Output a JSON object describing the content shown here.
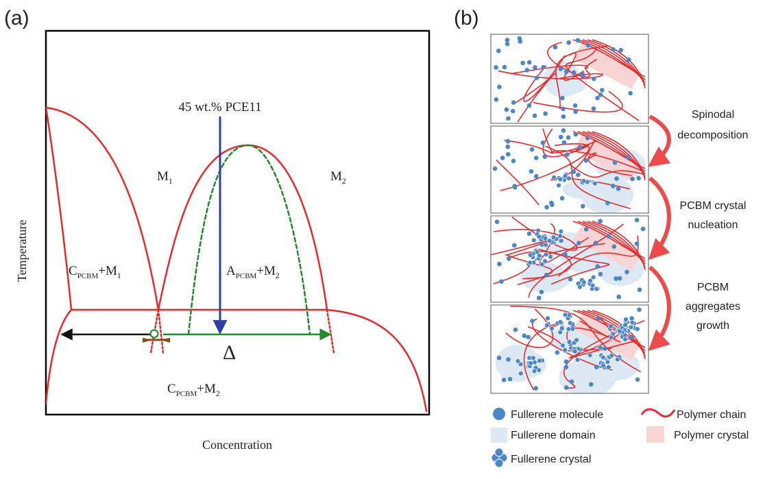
{
  "panel_a": {
    "label": "(a)",
    "composition_label": "45 wt.% PCE11",
    "x_axis_label": "Concentration",
    "y_axis_label": "Temperature",
    "regions": {
      "m1": {
        "main": "M",
        "sub": "1"
      },
      "m2": {
        "main": "M",
        "sub": "2"
      },
      "c_m1": {
        "p1": "C",
        "s1": "PCBM",
        "p2": "+M",
        "s2": "1"
      },
      "a_m2": {
        "p1": "A",
        "s1": "PCBM",
        "p2": "+M",
        "s2": "2"
      },
      "c_m2": {
        "p1": "C",
        "s1": "PCBM",
        "p2": "+M",
        "s2": "2"
      }
    },
    "delta_label": "Δ",
    "colors": {
      "binodal": "#e8282b",
      "spinodal": "#1f8a2a",
      "composition": "#2e3ea8",
      "tie_left": "#111111",
      "delta": "#8b4513"
    }
  },
  "panel_b": {
    "label": "(b)",
    "steps": [
      {
        "lines": [
          "Spinodal",
          "decomposition"
        ]
      },
      {
        "lines": [
          "PCBM crystal",
          "nucleation"
        ]
      },
      {
        "lines": [
          "PCBM",
          "aggregates",
          "growth"
        ]
      }
    ],
    "legend": {
      "molecule": "Fullerene molecule",
      "chain": "Polymer chain",
      "domain": "Fullerene domain",
      "polymer_crystal": "Polymer crystal",
      "fullerene_crystal": "Fullerene crystal"
    },
    "colors": {
      "dot": "#4a86c8",
      "chain": "#e8282b",
      "domain": "#dde8f5",
      "polymer_crystal": "#f9d4d4",
      "arrow": "#ee4a4a"
    }
  }
}
